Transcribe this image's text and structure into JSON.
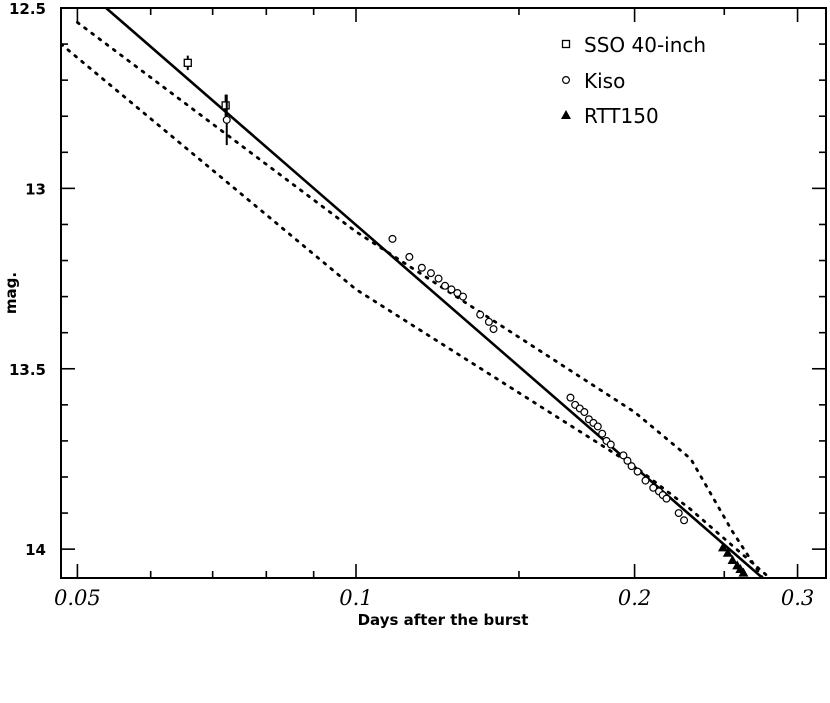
{
  "chart_data": {
    "type": "scatter",
    "title": "",
    "xlabel": "Days after the burst",
    "ylabel": "mag.",
    "xscale": "log",
    "xlim": [
      0.048,
      0.322
    ],
    "ylim": [
      12.5,
      14.08
    ],
    "y_inverted": true,
    "grid": false,
    "legend_position": "top-right",
    "x_ticks": [
      {
        "value": 0.05,
        "label": "0.05"
      },
      {
        "value": 0.1,
        "label": "0.1"
      },
      {
        "value": 0.2,
        "label": "0.2"
      },
      {
        "value": 0.3,
        "label": "0.3"
      }
    ],
    "y_ticks": [
      {
        "value": 12.5,
        "label": "12.5"
      },
      {
        "value": 13,
        "label": "13"
      },
      {
        "value": 13.5,
        "label": "13.5"
      },
      {
        "value": 14,
        "label": "14"
      }
    ],
    "series": [
      {
        "name": "SSO 40-inch",
        "marker": "square",
        "points": [
          {
            "x": 0.0658,
            "y": 12.652,
            "err": 0.02
          },
          {
            "x": 0.0723,
            "y": 12.77,
            "err": 0.03
          }
        ]
      },
      {
        "name": "Kiso",
        "marker": "circle",
        "points": [
          {
            "x": 0.0725,
            "y": 12.81,
            "err": 0.07
          },
          {
            "x": 0.1095,
            "y": 13.14
          },
          {
            "x": 0.1142,
            "y": 13.19
          },
          {
            "x": 0.1178,
            "y": 13.22
          },
          {
            "x": 0.1205,
            "y": 13.235
          },
          {
            "x": 0.1228,
            "y": 13.25
          },
          {
            "x": 0.1248,
            "y": 13.27
          },
          {
            "x": 0.1268,
            "y": 13.28
          },
          {
            "x": 0.1287,
            "y": 13.29
          },
          {
            "x": 0.1305,
            "y": 13.3
          },
          {
            "x": 0.1362,
            "y": 13.35
          },
          {
            "x": 0.1392,
            "y": 13.37
          },
          {
            "x": 0.1408,
            "y": 13.39
          },
          {
            "x": 0.1705,
            "y": 13.58
          },
          {
            "x": 0.1725,
            "y": 13.6
          },
          {
            "x": 0.1745,
            "y": 13.61
          },
          {
            "x": 0.1765,
            "y": 13.62
          },
          {
            "x": 0.1785,
            "y": 13.64
          },
          {
            "x": 0.1805,
            "y": 13.65
          },
          {
            "x": 0.1825,
            "y": 13.66
          },
          {
            "x": 0.1845,
            "y": 13.68
          },
          {
            "x": 0.1865,
            "y": 13.7
          },
          {
            "x": 0.1885,
            "y": 13.71
          },
          {
            "x": 0.1945,
            "y": 13.74
          },
          {
            "x": 0.1965,
            "y": 13.755
          },
          {
            "x": 0.1985,
            "y": 13.77
          },
          {
            "x": 0.2015,
            "y": 13.785
          },
          {
            "x": 0.2055,
            "y": 13.81
          },
          {
            "x": 0.2095,
            "y": 13.83
          },
          {
            "x": 0.2125,
            "y": 13.84
          },
          {
            "x": 0.2145,
            "y": 13.85
          },
          {
            "x": 0.2165,
            "y": 13.86
          },
          {
            "x": 0.2232,
            "y": 13.9
          },
          {
            "x": 0.2262,
            "y": 13.92
          }
        ]
      },
      {
        "name": "RTT150",
        "marker": "triangle",
        "points": [
          {
            "x": 0.2492,
            "y": 13.995
          },
          {
            "x": 0.2522,
            "y": 14.01
          },
          {
            "x": 0.2552,
            "y": 14.03
          },
          {
            "x": 0.2582,
            "y": 14.045
          },
          {
            "x": 0.2602,
            "y": 14.055
          },
          {
            "x": 0.2622,
            "y": 14.065
          }
        ]
      }
    ],
    "model_lines": [
      {
        "style": "solid",
        "x": [
          0.0537,
          0.275
        ],
        "y": [
          12.5,
          14.08
        ]
      },
      {
        "style": "dotted",
        "x": [
          0.05,
          0.1,
          0.2,
          0.23,
          0.255,
          0.275
        ],
        "y": [
          12.54,
          13.12,
          13.62,
          13.75,
          13.95,
          14.08
        ]
      },
      {
        "style": "dotted",
        "x": [
          0.048,
          0.1,
          0.2,
          0.23,
          0.255,
          0.28
        ],
        "y": [
          12.6,
          13.28,
          13.77,
          13.89,
          13.99,
          14.08
        ]
      }
    ]
  }
}
